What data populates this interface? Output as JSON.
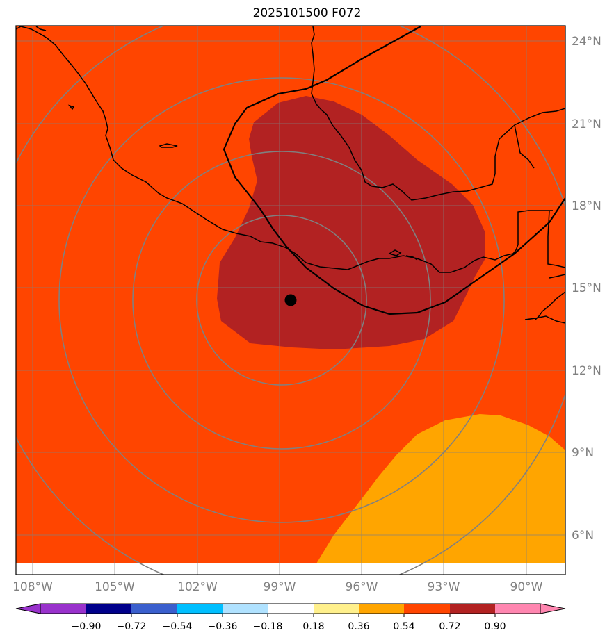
{
  "title": "2025101500 F072",
  "lat_labels": [
    "24°N",
    "21°N",
    "18°N",
    "15°N",
    "12°N",
    "9°N",
    "6°N"
  ],
  "lon_labels": [
    "108°W",
    "105°W",
    "102°W",
    "99°W",
    "96°W",
    "93°W",
    "90°W"
  ],
  "colorbar": {
    "ticks": [
      "−0.90",
      "−0.72",
      "−0.54",
      "−0.36",
      "−0.18",
      "0.18",
      "0.36",
      "0.54",
      "0.72",
      "0.90"
    ],
    "colors": [
      "#9932cc",
      "#00008b",
      "#3a5fcd",
      "#00bfff",
      "#b0e2ff",
      "#ffffff",
      "#fff08c",
      "#ffa500",
      "#ff4500",
      "#b22222",
      "#ff86b0"
    ]
  },
  "map": {
    "background_color": "#ff4500",
    "high_region_color": "#b22222",
    "low_region_color": "#ffa500",
    "storm_center": {
      "lat": 14.6,
      "lon": -98.6
    },
    "coastline_color": "#000000",
    "grid_color": "#808080"
  }
}
